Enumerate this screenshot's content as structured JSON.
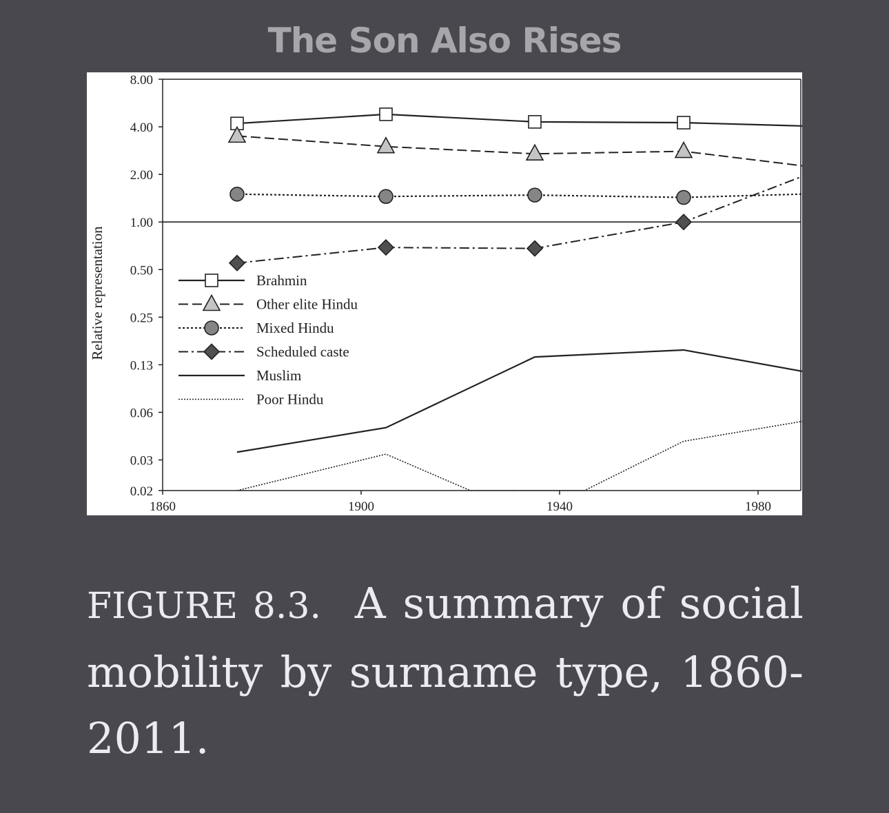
{
  "page": {
    "title": "The Son Also Rises"
  },
  "caption": {
    "label": "FIGURE 8.3.",
    "text": "A summary of social mobility by surname type, 1860-2011."
  },
  "chart_data": {
    "type": "line",
    "title": "",
    "xlabel": "",
    "ylabel": "Relative representation",
    "y_scale": "log",
    "xlim": [
      1860,
      1997
    ],
    "ylim": [
      0.02,
      8.0
    ],
    "x_ticks": [
      "1860",
      "1900",
      "1940",
      "1980"
    ],
    "y_ticks": [
      {
        "value": 8.0,
        "label": "8.00"
      },
      {
        "value": 4.0,
        "label": "4.00"
      },
      {
        "value": 2.0,
        "label": "2.00"
      },
      {
        "value": 1.0,
        "label": "1.00"
      },
      {
        "value": 0.5,
        "label": "0.50"
      },
      {
        "value": 0.25,
        "label": "0.25"
      },
      {
        "value": 0.125,
        "label": "0.13"
      },
      {
        "value": 0.0625,
        "label": "0.06"
      },
      {
        "value": 0.03125,
        "label": "0.03"
      },
      {
        "value": 0.02,
        "label": "0.02"
      }
    ],
    "reference_line": 1.0,
    "legend_position": "center-left",
    "grid": false,
    "series": [
      {
        "name": "Brahmin",
        "style": "solid",
        "marker": "square",
        "x": [
          1875,
          1905,
          1935,
          1965,
          1995
        ],
        "values": [
          4.2,
          4.8,
          4.3,
          4.25,
          4.0
        ]
      },
      {
        "name": "Other elite Hindu",
        "style": "dashed",
        "marker": "triangle",
        "x": [
          1875,
          1905,
          1935,
          1965,
          1995
        ],
        "values": [
          3.5,
          3.0,
          2.7,
          2.8,
          2.15
        ]
      },
      {
        "name": "Mixed Hindu",
        "style": "dotted",
        "marker": "circle",
        "x": [
          1875,
          1905,
          1935,
          1965,
          1995
        ],
        "values": [
          1.5,
          1.45,
          1.48,
          1.43,
          1.52
        ]
      },
      {
        "name": "Scheduled caste",
        "style": "dashdot",
        "marker": "diamond",
        "x": [
          1875,
          1905,
          1935,
          1965,
          1995
        ],
        "values": [
          0.55,
          0.69,
          0.68,
          1.0,
          2.3
        ]
      },
      {
        "name": "Muslim",
        "style": "solid",
        "marker": "none",
        "x": [
          1875,
          1905,
          1935,
          1965,
          1995
        ],
        "values": [
          0.035,
          0.05,
          0.14,
          0.155,
          0.105
        ]
      },
      {
        "name": "Poor Hindu",
        "style": "fine-dotted",
        "marker": "none",
        "x": [
          1875,
          1905,
          1922,
          1945,
          1965,
          1995
        ],
        "values": [
          0.02,
          0.034,
          0.02,
          0.02,
          0.041,
          0.059
        ]
      }
    ],
    "colors": {
      "line": "#222222",
      "square_fill": "#ffffff",
      "triangle_fill": "#c4c4c4",
      "circle_fill": "#858585",
      "diamond_fill": "#505050"
    }
  }
}
